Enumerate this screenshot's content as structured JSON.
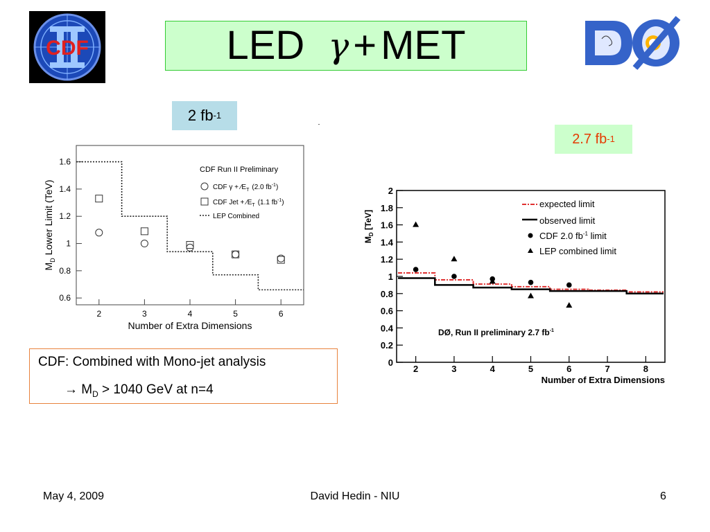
{
  "slide": {
    "title_left": "LED",
    "title_gamma": "γ",
    "title_plus": "+",
    "title_right": "MET",
    "lumi_cdf": {
      "value": "2 fb",
      "exp": "-1"
    },
    "lumi_d0": {
      "value": "2.7 fb",
      "exp": "-1"
    },
    "cdf_box": {
      "line1": "CDF: Combined with Mono-jet analysis",
      "arrow": "→ M",
      "sub": "D",
      "line2_rest": " > 1040 GeV at n=4"
    },
    "footer": {
      "date": "May 4, 2009",
      "author": "David Hedin - NIU",
      "page": "6"
    },
    "logos": {
      "left": "CDF",
      "right": "DØ"
    }
  },
  "chart_data": [
    {
      "type": "scatter",
      "title": "CDF Run II Preliminary",
      "xlabel": "Number of Extra Dimensions",
      "ylabel_main": "M",
      "ylabel_sub": "D",
      "ylabel_rest": " Lower Limit (TeV)",
      "xlim": [
        1.5,
        6.5
      ],
      "ylim": [
        0.55,
        1.72
      ],
      "xticks": [
        "2",
        "3",
        "4",
        "5",
        "6"
      ],
      "yticks": [
        "0.6",
        "0.8",
        "1",
        "1.2",
        "1.4",
        "1.6"
      ],
      "legend": [
        {
          "label": "CDF γ + ∕E",
          "sub": "T",
          "lumi": "(2.0 fb",
          "exp": "-1",
          "close": ")"
        },
        {
          "label": "CDF Jet + ∕E",
          "sub": "T",
          "lumi": "(1.1 fb",
          "exp": "-1",
          "close": ")"
        },
        {
          "label": "LEP Combined"
        }
      ],
      "series": [
        {
          "name": "CDF γ + ∕E_T (2.0 fb-1)",
          "marker": "circle",
          "x": [
            2,
            3,
            4,
            5,
            6
          ],
          "y": [
            1.08,
            1.0,
            0.97,
            0.92,
            0.89
          ]
        },
        {
          "name": "CDF Jet + ∕E_T (1.1 fb-1)",
          "marker": "square",
          "x": [
            2,
            3,
            4,
            5,
            6
          ],
          "y": [
            1.33,
            1.09,
            0.99,
            0.92,
            0.88
          ]
        },
        {
          "name": "LEP Combined",
          "style": "dotted-step",
          "steps": [
            [
              1.5,
              1.6
            ],
            [
              2.5,
              1.2
            ],
            [
              3.5,
              0.94
            ],
            [
              4.5,
              0.77
            ],
            [
              5.5,
              0.66
            ],
            [
              6.5,
              0.66
            ]
          ]
        }
      ]
    },
    {
      "type": "line",
      "title": "DØ, Run II preliminary 2.7 fb",
      "title_exp": "-1",
      "xlabel": "Number of Extra Dimensions",
      "ylabel_main": "M",
      "ylabel_sub": "D",
      "ylabel_rest": " [TeV]",
      "xlim": [
        1.5,
        8.5
      ],
      "ylim": [
        0,
        2
      ],
      "xticks": [
        "2",
        "3",
        "4",
        "5",
        "6",
        "7",
        "8"
      ],
      "yticks": [
        "0",
        "0.2",
        "0.4",
        "0.6",
        "0.8",
        "1",
        "1.2",
        "1.4",
        "1.6",
        "1.8",
        "2"
      ],
      "legend": [
        {
          "label": "expected limit"
        },
        {
          "label": "observed limit"
        },
        {
          "label": "CDF 2.0 fb",
          "exp": "-1",
          "rest": " limit"
        },
        {
          "label": "LEP combined limit"
        }
      ],
      "series": [
        {
          "name": "expected limit",
          "style": "red-dashdot-step",
          "x": [
            2,
            3,
            4,
            5,
            6,
            7,
            8
          ],
          "y": [
            1.04,
            0.96,
            0.91,
            0.88,
            0.85,
            0.84,
            0.82
          ]
        },
        {
          "name": "observed limit",
          "style": "black-step",
          "x": [
            2,
            3,
            4,
            5,
            6,
            7,
            8
          ],
          "y": [
            0.98,
            0.9,
            0.87,
            0.85,
            0.83,
            0.83,
            0.8
          ]
        },
        {
          "name": "CDF 2.0 fb-1 limit",
          "marker": "dot",
          "x": [
            2,
            3,
            4,
            5,
            6
          ],
          "y": [
            1.08,
            1.0,
            0.97,
            0.93,
            0.9
          ]
        },
        {
          "name": "LEP combined limit",
          "marker": "triangle",
          "x": [
            2,
            3,
            4,
            5,
            6
          ],
          "y": [
            1.6,
            1.2,
            0.94,
            0.77,
            0.66
          ]
        }
      ]
    }
  ]
}
